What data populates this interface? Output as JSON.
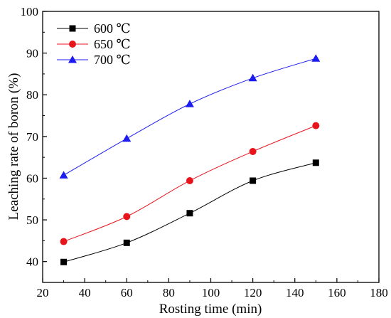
{
  "chart_data": {
    "type": "line",
    "title": "",
    "xlabel": "Rosting time (min)",
    "ylabel": "Leaching rate of boron (%)",
    "xlim": [
      20,
      180
    ],
    "ylim": [
      35,
      100
    ],
    "x_ticks": [
      20,
      40,
      60,
      80,
      100,
      120,
      140,
      160,
      180
    ],
    "y_ticks": [
      40,
      50,
      60,
      70,
      80,
      90,
      100
    ],
    "grid": false,
    "legend_position": "top-left",
    "series": [
      {
        "name": "600 ℃",
        "color": "#000000",
        "marker": "square",
        "x": [
          30,
          60,
          90,
          120,
          150
        ],
        "y": [
          39.9,
          44.5,
          51.6,
          59.4,
          63.7
        ]
      },
      {
        "name": "650 ℃",
        "color": "#e8141b",
        "marker": "circle",
        "x": [
          30,
          60,
          90,
          120,
          150
        ],
        "y": [
          44.8,
          50.8,
          59.4,
          66.4,
          72.6
        ]
      },
      {
        "name": "700 ℃",
        "color": "#1c1cf0",
        "marker": "triangle",
        "x": [
          30,
          60,
          90,
          120,
          150
        ],
        "y": [
          60.7,
          69.5,
          77.8,
          84.0,
          88.7
        ]
      }
    ]
  }
}
